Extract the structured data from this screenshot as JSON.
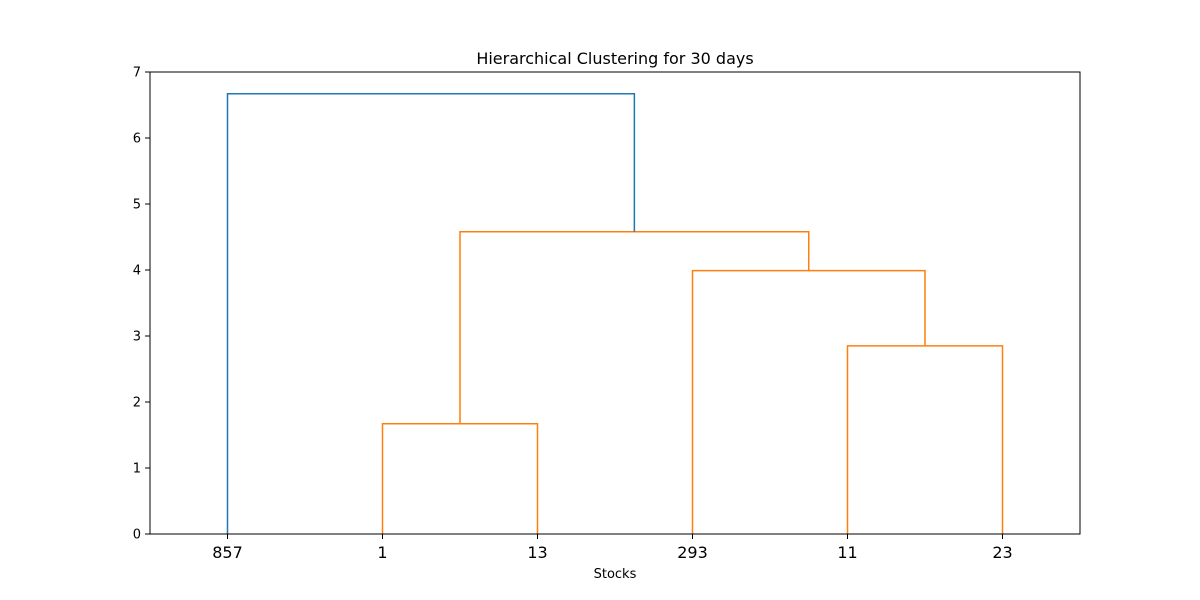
{
  "chart_data": {
    "type": "dendrogram",
    "title": "Hierarchical Clustering for 30 days",
    "xlabel": "Stocks",
    "ylabel": "",
    "ylim": [
      0,
      7
    ],
    "yticks": [
      0,
      1,
      2,
      3,
      4,
      5,
      6,
      7
    ],
    "leaves": [
      "857",
      "1",
      "13",
      "293",
      "11",
      "23"
    ],
    "above_threshold_color": "#1f77b4",
    "cluster_color": "#ff7f0e",
    "grid": false,
    "links": [
      {
        "left": "1",
        "right": "13",
        "height": 1.67,
        "color": "#ff7f0e"
      },
      {
        "left": "11",
        "right": "23",
        "height": 2.85,
        "color": "#ff7f0e"
      },
      {
        "left": "293",
        "right": "(11, 23)",
        "height": 3.99,
        "color": "#ff7f0e"
      },
      {
        "left": "(1, 13)",
        "right": "(293, (11, 23))",
        "height": 4.58,
        "color": "#ff7f0e"
      },
      {
        "left": "857",
        "right": "((1, 13), (293, (11, 23)))",
        "height": 6.67,
        "color": "#1f77b4"
      }
    ]
  }
}
